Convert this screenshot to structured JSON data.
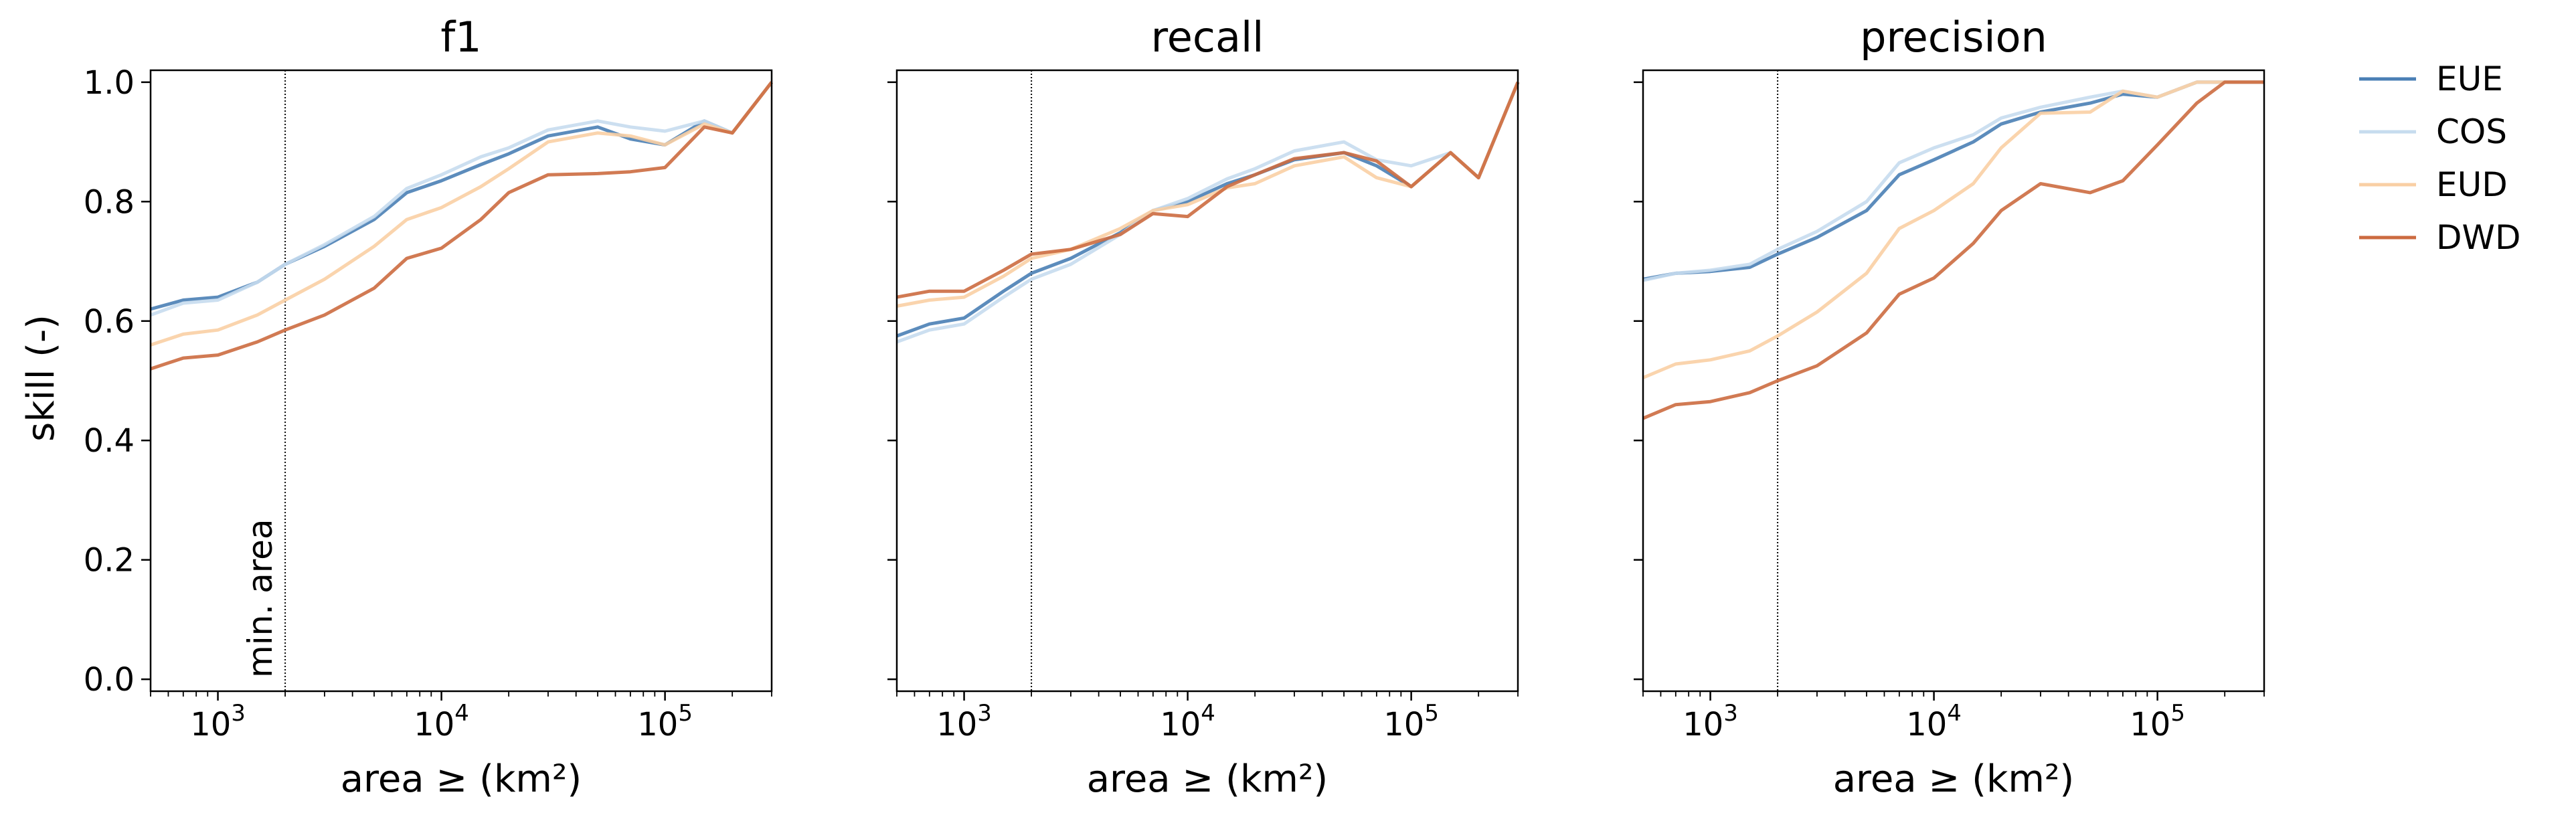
{
  "figure": {
    "ylabel": "skill (-)",
    "annotation": "min. area",
    "min_area": 2000
  },
  "legend": {
    "placement": "right-outside-top",
    "entries": [
      {
        "name": "EUE",
        "color": "#4a7fb5"
      },
      {
        "name": "COS",
        "color": "#c6dcee"
      },
      {
        "name": "EUD",
        "color": "#f9cfa4"
      },
      {
        "name": "DWD",
        "color": "#cc6b40"
      }
    ]
  },
  "chart_data": [
    {
      "type": "line",
      "title": "f1",
      "xlabel": "area ≥ (km²)",
      "xscale": "log",
      "xlim": [
        500,
        300000
      ],
      "ylim": [
        -0.02,
        1.02
      ],
      "x": [
        500,
        700,
        1000,
        1500,
        2000,
        3000,
        5000,
        7000,
        10000,
        15000,
        20000,
        30000,
        50000,
        70000,
        100000,
        150000,
        200000,
        300000
      ],
      "series": [
        {
          "name": "EUE",
          "values": [
            0.62,
            0.635,
            0.64,
            0.665,
            0.695,
            0.725,
            0.77,
            0.815,
            0.835,
            0.862,
            0.88,
            0.91,
            0.925,
            0.905,
            0.895,
            0.935,
            0.915,
            1.0
          ]
        },
        {
          "name": "COS",
          "values": [
            0.61,
            0.63,
            0.635,
            0.665,
            0.695,
            0.728,
            0.775,
            0.822,
            0.845,
            0.875,
            0.89,
            0.92,
            0.935,
            0.925,
            0.918,
            0.935,
            0.915,
            1.0
          ]
        },
        {
          "name": "EUD",
          "values": [
            0.56,
            0.578,
            0.585,
            0.61,
            0.635,
            0.67,
            0.725,
            0.77,
            0.79,
            0.825,
            0.855,
            0.9,
            0.915,
            0.91,
            0.895,
            0.93,
            0.915,
            1.0
          ]
        },
        {
          "name": "DWD",
          "values": [
            0.52,
            0.538,
            0.543,
            0.565,
            0.585,
            0.61,
            0.655,
            0.705,
            0.722,
            0.77,
            0.815,
            0.845,
            0.847,
            0.85,
            0.857,
            0.925,
            0.915,
            1.0
          ]
        }
      ]
    },
    {
      "type": "line",
      "title": "recall",
      "xlabel": "area ≥ (km²)",
      "xscale": "log",
      "xlim": [
        500,
        300000
      ],
      "ylim": [
        -0.02,
        1.02
      ],
      "x": [
        500,
        700,
        1000,
        1500,
        2000,
        3000,
        5000,
        7000,
        10000,
        15000,
        20000,
        30000,
        50000,
        70000,
        100000,
        150000,
        200000,
        300000
      ],
      "series": [
        {
          "name": "EUE",
          "values": [
            0.575,
            0.595,
            0.605,
            0.65,
            0.68,
            0.705,
            0.748,
            0.785,
            0.8,
            0.83,
            0.845,
            0.87,
            0.882,
            0.86,
            0.825,
            0.882,
            0.84,
            1.0
          ]
        },
        {
          "name": "COS",
          "values": [
            0.565,
            0.585,
            0.595,
            0.64,
            0.67,
            0.695,
            0.745,
            0.785,
            0.805,
            0.838,
            0.855,
            0.885,
            0.9,
            0.87,
            0.86,
            0.882,
            0.84,
            1.0
          ]
        },
        {
          "name": "EUD",
          "values": [
            0.625,
            0.635,
            0.64,
            0.675,
            0.705,
            0.72,
            0.755,
            0.785,
            0.795,
            0.823,
            0.83,
            0.86,
            0.875,
            0.84,
            0.825,
            0.882,
            0.84,
            1.0
          ]
        },
        {
          "name": "DWD",
          "values": [
            0.64,
            0.65,
            0.65,
            0.685,
            0.712,
            0.72,
            0.745,
            0.78,
            0.775,
            0.825,
            0.845,
            0.872,
            0.882,
            0.868,
            0.825,
            0.882,
            0.84,
            1.0
          ]
        }
      ]
    },
    {
      "type": "line",
      "title": "precision",
      "xlabel": "area ≥ (km²)",
      "xscale": "log",
      "xlim": [
        500,
        300000
      ],
      "ylim": [
        -0.02,
        1.02
      ],
      "x": [
        500,
        700,
        1000,
        1500,
        2000,
        3000,
        5000,
        7000,
        10000,
        15000,
        20000,
        30000,
        50000,
        70000,
        100000,
        150000,
        200000,
        300000
      ],
      "series": [
        {
          "name": "EUE",
          "values": [
            0.67,
            0.68,
            0.683,
            0.69,
            0.712,
            0.74,
            0.785,
            0.845,
            0.87,
            0.9,
            0.93,
            0.95,
            0.965,
            0.98,
            0.975,
            1.0,
            1.0,
            1.0
          ]
        },
        {
          "name": "COS",
          "values": [
            0.668,
            0.68,
            0.685,
            0.695,
            0.72,
            0.75,
            0.8,
            0.865,
            0.89,
            0.912,
            0.94,
            0.958,
            0.975,
            0.985,
            0.975,
            1.0,
            1.0,
            1.0
          ]
        },
        {
          "name": "EUD",
          "values": [
            0.505,
            0.528,
            0.535,
            0.55,
            0.575,
            0.615,
            0.68,
            0.755,
            0.785,
            0.83,
            0.89,
            0.948,
            0.95,
            0.985,
            0.975,
            1.0,
            1.0,
            1.0
          ]
        },
        {
          "name": "DWD",
          "values": [
            0.437,
            0.46,
            0.465,
            0.48,
            0.5,
            0.525,
            0.58,
            0.645,
            0.672,
            0.73,
            0.785,
            0.83,
            0.815,
            0.835,
            0.895,
            0.965,
            1.0,
            1.0
          ]
        }
      ]
    }
  ]
}
